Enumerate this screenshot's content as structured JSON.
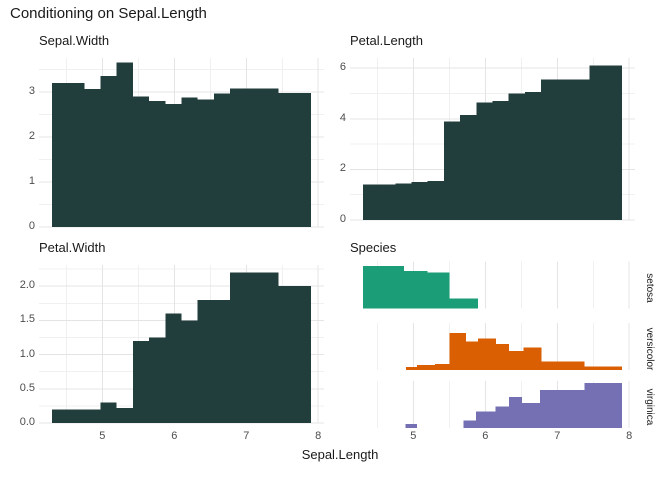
{
  "title": "Conditioning on Sepal.Length",
  "x_axis": {
    "label": "Sepal.Length",
    "tick_values": [
      5,
      6,
      7,
      8
    ],
    "tick_labels": [
      "5",
      "6",
      "7",
      "8"
    ],
    "minor_values": [
      4.5,
      5.5,
      6.5,
      7.5
    ],
    "range": [
      4.12,
      8.08
    ]
  },
  "colors": {
    "bar_dark": "#223e3c",
    "setosa": "#1b9e77",
    "versicolor": "#d95f02",
    "virginica": "#7570b3",
    "grid_major": "#e4e4e4",
    "grid_minor": "#f0f0f0",
    "axis_text": "#4d4d4d",
    "title_text": "#1a1a1a"
  },
  "chart_data": [
    {
      "type": "bar",
      "title": "Sepal.Width",
      "xlabel": "Sepal.Length",
      "x_bin_edges": [
        4.3,
        4.525,
        4.75,
        4.975,
        5.2,
        5.425,
        5.65,
        5.875,
        6.1,
        6.325,
        6.55,
        6.775,
        7.0,
        7.225,
        7.45,
        7.675,
        7.9
      ],
      "values": [
        3.2,
        3.2,
        3.07,
        3.35,
        3.65,
        2.9,
        2.8,
        2.73,
        2.88,
        2.83,
        2.97,
        3.08,
        3.08,
        3.08,
        2.98,
        2.98
      ],
      "ylim": [
        0,
        3.755
      ],
      "ytick_values": [
        0,
        1,
        2,
        3
      ],
      "ytick_labels": [
        "0",
        "1",
        "2",
        "3"
      ],
      "y_minor": [
        0.5,
        1.5,
        2.5,
        3.5
      ]
    },
    {
      "type": "bar",
      "title": "Petal.Length",
      "xlabel": "Sepal.Length",
      "x_bin_edges": [
        4.3,
        4.525,
        4.75,
        4.975,
        5.2,
        5.425,
        5.65,
        5.875,
        6.1,
        6.325,
        6.55,
        6.775,
        7.0,
        7.225,
        7.45,
        7.675,
        7.9
      ],
      "values": [
        1.4,
        1.4,
        1.45,
        1.5,
        1.55,
        3.9,
        4.15,
        4.65,
        4.7,
        5.0,
        5.05,
        5.55,
        5.55,
        5.55,
        6.1,
        6.1
      ],
      "ylim": [
        0,
        6.4
      ],
      "ytick_values": [
        0,
        2,
        4,
        6
      ],
      "ytick_labels": [
        "0",
        "2",
        "4",
        "6"
      ],
      "y_minor": [
        1,
        3,
        5
      ]
    },
    {
      "type": "bar",
      "title": "Petal.Width",
      "xlabel": "Sepal.Length",
      "x_bin_edges": [
        4.3,
        4.525,
        4.75,
        4.975,
        5.2,
        5.425,
        5.65,
        5.875,
        6.1,
        6.325,
        6.55,
        6.775,
        7.0,
        7.225,
        7.45,
        7.675,
        7.9
      ],
      "values": [
        0.2,
        0.2,
        0.2,
        0.3,
        0.22,
        1.2,
        1.25,
        1.6,
        1.5,
        1.8,
        1.8,
        2.2,
        2.2,
        2.2,
        2.0,
        2.0
      ],
      "ylim": [
        0,
        2.31
      ],
      "ytick_values": [
        0,
        0.5,
        1,
        1.5,
        2
      ],
      "ytick_labels": [
        "0.0",
        "0.5",
        "1.0",
        "1.5",
        "2.0"
      ],
      "y_minor": [
        0.25,
        0.75,
        1.25,
        1.75,
        2.25
      ]
    },
    {
      "type": "ridge-histogram",
      "title": "Species",
      "xlabel": "Sepal.Length",
      "rows": [
        {
          "label": "setosa",
          "color_key": "setosa",
          "segments": [
            [
              4.3,
              4.87,
              0.92
            ],
            [
              4.87,
              5.2,
              0.82
            ],
            [
              5.2,
              5.5,
              0.78
            ],
            [
              5.5,
              5.9,
              0.22
            ]
          ]
        },
        {
          "label": "versicolor",
          "color_key": "versicolor",
          "segments": [
            [
              4.9,
              5.05,
              0.07
            ],
            [
              5.05,
              5.3,
              0.11
            ],
            [
              5.3,
              5.5,
              0.13
            ],
            [
              5.5,
              5.73,
              0.8
            ],
            [
              5.73,
              5.9,
              0.62
            ],
            [
              5.9,
              6.15,
              0.68
            ],
            [
              6.15,
              6.33,
              0.57
            ],
            [
              6.33,
              6.53,
              0.41
            ],
            [
              6.53,
              6.78,
              0.49
            ],
            [
              6.78,
              7.38,
              0.19
            ],
            [
              7.38,
              7.9,
              0.08
            ]
          ]
        },
        {
          "label": "virginica",
          "color_key": "virginica",
          "segments": [
            [
              4.89,
              5.05,
              0.09
            ],
            [
              5.7,
              5.87,
              0.16
            ],
            [
              5.87,
              6.14,
              0.36
            ],
            [
              6.14,
              6.33,
              0.47
            ],
            [
              6.33,
              6.51,
              0.67
            ],
            [
              6.51,
              6.76,
              0.54
            ],
            [
              6.76,
              7.38,
              0.83
            ],
            [
              7.38,
              7.9,
              0.98
            ]
          ]
        }
      ]
    }
  ]
}
